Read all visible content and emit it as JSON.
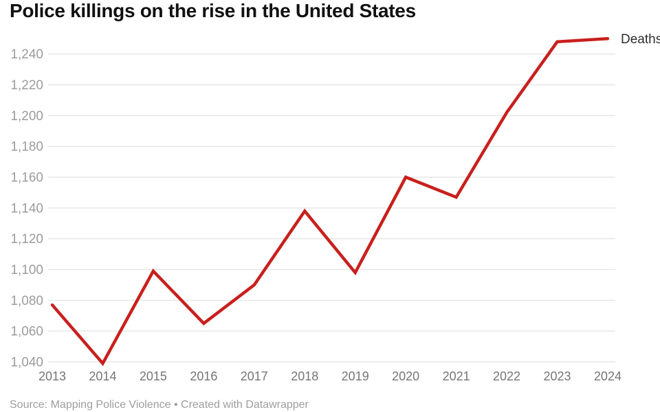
{
  "header": {
    "title": "Police killings on the rise in the United States"
  },
  "footer": {
    "source": "Source: Mapping Police Violence • Created with Datawrapper"
  },
  "legend": {
    "series_label": "Deaths"
  },
  "colors": {
    "line": "#c7201d",
    "grid": "#e7e7e7",
    "y_tick_text": "#9c9c9c",
    "x_tick_text": "#757575",
    "title_text": "#111111",
    "series_label_text": "#2e2e2e",
    "source_text": "#9d9d9d",
    "background": "#ffffff"
  },
  "chart_data": {
    "type": "line",
    "title": "Police killings on the rise in the United States",
    "x": [
      "2013",
      "2014",
      "2015",
      "2016",
      "2017",
      "2018",
      "2019",
      "2020",
      "2021",
      "2022",
      "2023",
      "2024"
    ],
    "series": [
      {
        "name": "Deaths",
        "values": [
          1077,
          1039,
          1099,
          1065,
          1090,
          1138,
          1098,
          1160,
          1147,
          1202,
          1248,
          1250
        ]
      }
    ],
    "xlabel": "",
    "ylabel": "",
    "ylim": [
      1040,
      1240
    ],
    "yticks": [
      1040,
      1060,
      1080,
      1100,
      1120,
      1140,
      1160,
      1180,
      1200,
      1220,
      1240
    ],
    "grid": true,
    "legend_position": "right-of-line-end",
    "source": "Mapping Police Violence",
    "tool": "Datawrapper"
  }
}
